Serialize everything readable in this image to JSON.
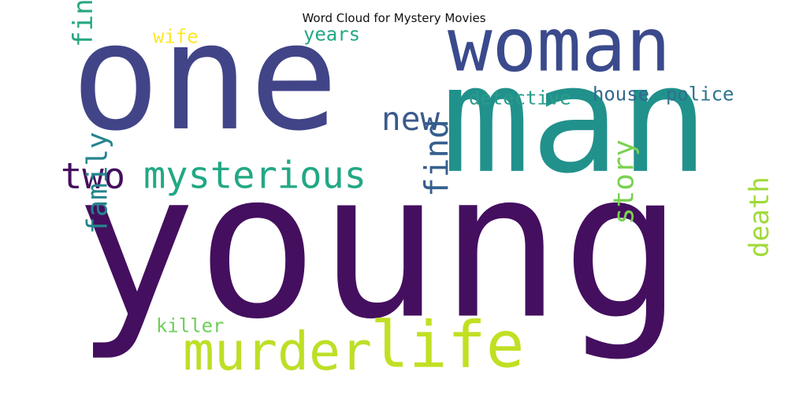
{
  "title": "Word Cloud for Mystery Movies",
  "words": [
    {
      "key": "one",
      "text": "one",
      "color": "#414487"
    },
    {
      "key": "young",
      "text": "young",
      "color": "#440f5f"
    },
    {
      "key": "man",
      "text": "man",
      "color": "#21918c"
    },
    {
      "key": "woman",
      "text": "woman",
      "color": "#3b4a8c"
    },
    {
      "key": "murder",
      "text": "murder",
      "color": "#bddf26"
    },
    {
      "key": "life",
      "text": "life",
      "color": "#c2df23"
    },
    {
      "key": "mysterious",
      "text": "mysterious",
      "color": "#22a884"
    },
    {
      "key": "two",
      "text": "two",
      "color": "#440f5f"
    },
    {
      "key": "new",
      "text": "new",
      "color": "#3b5a8c"
    },
    {
      "key": "find",
      "text": "find",
      "color": "#355f8d"
    },
    {
      "key": "finds",
      "text": "finds",
      "color": "#26a784"
    },
    {
      "key": "family",
      "text": "family",
      "color": "#25848e"
    },
    {
      "key": "story",
      "text": "story",
      "color": "#7ad151"
    },
    {
      "key": "death",
      "text": "death",
      "color": "#a0da39"
    },
    {
      "key": "detective",
      "text": "detective",
      "color": "#2a9c8a"
    },
    {
      "key": "house",
      "text": "house",
      "color": "#31688e"
    },
    {
      "key": "police",
      "text": "police",
      "color": "#2c728e"
    },
    {
      "key": "years",
      "text": "years",
      "color": "#22a884"
    },
    {
      "key": "wife",
      "text": "wife",
      "color": "#fde725"
    },
    {
      "key": "killer",
      "text": "killer",
      "color": "#6ece58"
    }
  ]
}
